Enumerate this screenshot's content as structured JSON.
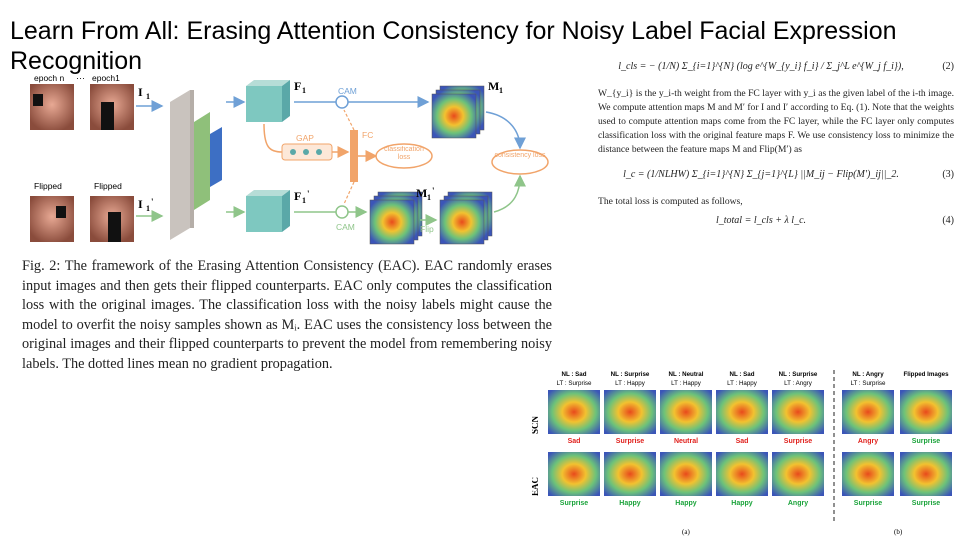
{
  "slide": {
    "title": "Learn From All: Erasing Attention Consistency for Noisy Label Facial Expression Recognition"
  },
  "framework": {
    "labels": {
      "epoch_n": "epoch n",
      "dots": "···",
      "epoch_1": "epoch1",
      "flipped_a": "Flipped",
      "flipped_b": "Flipped",
      "i1": "I",
      "i1_sub": "1",
      "i1p": "I",
      "i1p_sub": "1",
      "i1p_prime": "'",
      "f1": "F",
      "f1_sub": "1",
      "f1p": "F",
      "f1p_sub": "1",
      "f1p_prime": "'",
      "m1": "M",
      "m1_sub": "1",
      "m1p": "M",
      "m1p_sub": "1",
      "m1p_prime": "'",
      "cam_top": "CAM",
      "cam_bottom": "CAM",
      "gap": "GAP",
      "fc": "FC",
      "classification_loss": "classification loss",
      "consistency_loss": "consistency loss",
      "flip": "Flip"
    },
    "colors": {
      "cube_face": "#7ec8c0",
      "cube_top": "#b6ddd7",
      "cube_side": "#5aa8a8",
      "cnn_slab": "#c9c3be",
      "cnn_green": "#8fc07a",
      "cnn_blue": "#3d6fc4",
      "orange": "#f1a46a",
      "arrow_blue": "#6fa0d6",
      "arrow_green": "#8fc58a"
    }
  },
  "caption": {
    "text": "Fig. 2: The framework of the Erasing Attention Consistency (EAC). EAC randomly erases input images and then gets their flipped counterparts. EAC only computes the classification loss with the original images. The classification loss with the noisy labels might cause the model to overfit the noisy samples shown as Mᵢ. EAC uses the consistency loss between the original images and their flipped counterparts to prevent the model from remembering noisy labels. The dotted lines mean no gradient propagation."
  },
  "equations": {
    "eq2": "l_cls = − (1/N) Σ_{i=1}^{N} (log e^{W_{y_i} f_i} / Σ_j^L e^{W_j f_i}),",
    "eq2_num": "(2)",
    "para1": "W_{y_i} is the y_i-th weight from the FC layer with y_i as the given label of the i-th image. We compute attention maps M and M′ for I and I′ according to Eq. (1). Note that the weights used to compute attention maps come from the FC layer, while the FC layer only computes classification loss with the original feature maps F. We use consistency loss to minimize the distance between the feature maps M and Flip(M′) as",
    "eq3": "l_c = (1/NLHW) Σ_{i=1}^{N} Σ_{j=1}^{L} ||M_ij − Flip(M′)_ij||_2.",
    "eq3_num": "(3)",
    "para2": "The total loss is computed as follows,",
    "eq4": "l_total = l_cls + λ l_c.",
    "eq4_num": "(4)"
  },
  "results": {
    "columns": [
      {
        "nl": "NL : Sad",
        "lt": "LT : Surprise",
        "scn": "Sad",
        "eac": "Surprise"
      },
      {
        "nl": "NL : Surprise",
        "lt": "LT : Happy",
        "scn": "Surprise",
        "eac": "Happy"
      },
      {
        "nl": "NL : Neutral",
        "lt": "LT : Happy",
        "scn": "Neutral",
        "eac": "Happy"
      },
      {
        "nl": "NL : Sad",
        "lt": "LT : Happy",
        "scn": "Sad",
        "eac": "Happy"
      },
      {
        "nl": "NL : Surprise",
        "lt": "LT : Angry",
        "scn": "Surprise",
        "eac": "Angry"
      },
      {
        "nl": "NL : Angry",
        "lt": "LT : Surprise",
        "scn": "Angry",
        "eac": "Surprise"
      },
      {
        "nl": "Flipped Images",
        "lt": "",
        "scn": "Surprise",
        "eac": "Surprise"
      }
    ],
    "row_labels": [
      "SCN",
      "EAC"
    ],
    "sub_a": "(a)",
    "sub_b": "(b)",
    "colors": {
      "wrong": "#e0201c",
      "right": "#1aa33a"
    }
  }
}
